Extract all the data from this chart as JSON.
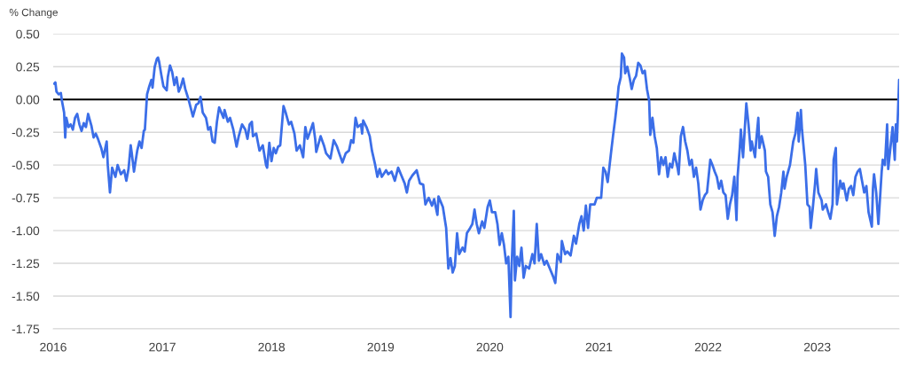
{
  "chart_data": {
    "type": "line",
    "ylabel": "% Change",
    "x": [
      2016.01,
      2016.02,
      2016.03,
      2016.05,
      2016.07,
      2016.08,
      2016.1,
      2016.11,
      2016.12,
      2016.14,
      2016.16,
      2016.18,
      2016.2,
      2016.22,
      2016.24,
      2016.26,
      2016.28,
      2016.3,
      2016.32,
      2016.35,
      2016.37,
      2016.39,
      2016.41,
      2016.44,
      2016.46,
      2016.49,
      2016.5,
      2016.52,
      2016.54,
      2016.57,
      2016.59,
      2016.62,
      2016.65,
      2016.67,
      2016.69,
      2016.71,
      2016.72,
      2016.74,
      2016.77,
      2016.79,
      2016.81,
      2016.83,
      2016.84,
      2016.86,
      2016.88,
      2016.9,
      2016.91,
      2016.93,
      2016.95,
      2016.96,
      2016.97,
      2016.99,
      2017.01,
      2017.04,
      2017.05,
      2017.07,
      2017.09,
      2017.11,
      2017.13,
      2017.15,
      2017.17,
      2017.19,
      2017.21,
      2017.24,
      2017.28,
      2017.31,
      2017.33,
      2017.35,
      2017.37,
      2017.4,
      2017.42,
      2017.44,
      2017.46,
      2017.48,
      2017.5,
      2017.52,
      2017.54,
      2017.56,
      2017.57,
      2017.6,
      2017.62,
      2017.65,
      2017.68,
      2017.7,
      2017.73,
      2017.76,
      2017.78,
      2017.8,
      2017.82,
      2017.83,
      2017.86,
      2017.89,
      2017.92,
      2017.95,
      2017.96,
      2017.98,
      2018.0,
      2018.02,
      2018.04,
      2018.06,
      2018.08,
      2018.11,
      2018.13,
      2018.16,
      2018.18,
      2018.21,
      2018.23,
      2018.26,
      2018.29,
      2018.31,
      2018.33,
      2018.36,
      2018.38,
      2018.4,
      2018.41,
      2018.45,
      2018.48,
      2018.5,
      2018.54,
      2018.57,
      2018.6,
      2018.62,
      2018.65,
      2018.68,
      2018.71,
      2018.73,
      2018.75,
      2018.77,
      2018.79,
      2018.82,
      2018.83,
      2018.84,
      2018.87,
      2018.9,
      2018.92,
      2018.95,
      2018.97,
      2018.99,
      2019.01,
      2019.05,
      2019.07,
      2019.1,
      2019.13,
      2019.16,
      2019.19,
      2019.22,
      2019.24,
      2019.26,
      2019.29,
      2019.33,
      2019.36,
      2019.39,
      2019.41,
      2019.44,
      2019.47,
      2019.49,
      2019.52,
      2019.53,
      2019.57,
      2019.6,
      2019.62,
      2019.64,
      2019.66,
      2019.68,
      2019.7,
      2019.72,
      2019.75,
      2019.77,
      2019.79,
      2019.82,
      2019.84,
      2019.86,
      2019.88,
      2019.9,
      2019.93,
      2019.95,
      2019.98,
      2020.0,
      2020.02,
      2020.05,
      2020.07,
      2020.09,
      2020.11,
      2020.13,
      2020.15,
      2020.17,
      2020.19,
      2020.2,
      2020.22,
      2020.23,
      2020.25,
      2020.27,
      2020.29,
      2020.31,
      2020.33,
      2020.36,
      2020.39,
      2020.41,
      2020.43,
      2020.45,
      2020.47,
      2020.5,
      2020.52,
      2020.55,
      2020.58,
      2020.6,
      2020.62,
      2020.65,
      2020.66,
      2020.69,
      2020.71,
      2020.74,
      2020.77,
      2020.79,
      2020.82,
      2020.84,
      2020.86,
      2020.88,
      2020.9,
      2020.92,
      2020.96,
      2020.98,
      2021.02,
      2021.04,
      2021.06,
      2021.08,
      2021.11,
      2021.13,
      2021.15,
      2021.17,
      2021.18,
      2021.2,
      2021.21,
      2021.23,
      2021.24,
      2021.26,
      2021.28,
      2021.3,
      2021.32,
      2021.34,
      2021.36,
      2021.38,
      2021.4,
      2021.42,
      2021.44,
      2021.46,
      2021.47,
      2021.49,
      2021.51,
      2021.53,
      2021.55,
      2021.57,
      2021.59,
      2021.61,
      2021.63,
      2021.65,
      2021.67,
      2021.69,
      2021.72,
      2021.73,
      2021.75,
      2021.77,
      2021.79,
      2021.81,
      2021.83,
      2021.85,
      2021.87,
      2021.89,
      2021.91,
      2021.93,
      2021.95,
      2021.97,
      2021.99,
      2022.02,
      2022.04,
      2022.06,
      2022.08,
      2022.1,
      2022.12,
      2022.14,
      2022.16,
      2022.18,
      2022.2,
      2022.22,
      2022.24,
      2022.26,
      2022.27,
      2022.29,
      2022.3,
      2022.32,
      2022.35,
      2022.37,
      2022.39,
      2022.4,
      2022.43,
      2022.44,
      2022.46,
      2022.47,
      2022.49,
      2022.52,
      2022.53,
      2022.55,
      2022.57,
      2022.59,
      2022.61,
      2022.63,
      2022.65,
      2022.67,
      2022.69,
      2022.7,
      2022.72,
      2022.75,
      2022.76,
      2022.78,
      2022.8,
      2022.82,
      2022.83,
      2022.85,
      2022.86,
      2022.89,
      2022.91,
      2022.93,
      2022.94,
      2022.96,
      2022.98,
      2022.99,
      2023.01,
      2023.04,
      2023.05,
      2023.08,
      2023.1,
      2023.12,
      2023.14,
      2023.15,
      2023.17,
      2023.18,
      2023.21,
      2023.23,
      2023.24,
      2023.27,
      2023.29,
      2023.31,
      2023.33,
      2023.35,
      2023.37,
      2023.39,
      2023.41,
      2023.43,
      2023.45,
      2023.47,
      2023.5,
      2023.51,
      2023.52,
      2023.54,
      2023.56,
      2023.57,
      2023.59,
      2023.6,
      2023.62,
      2023.64,
      2023.65,
      2023.67,
      2023.69,
      2023.71,
      2023.72,
      2023.73,
      2023.75
    ],
    "series": [
      {
        "color": "#3b6ee8",
        "values": [
          0.12,
          0.13,
          0.06,
          0.04,
          0.05,
          -0.01,
          -0.1,
          -0.29,
          -0.14,
          -0.21,
          -0.19,
          -0.23,
          -0.14,
          -0.11,
          -0.19,
          -0.24,
          -0.18,
          -0.21,
          -0.11,
          -0.2,
          -0.29,
          -0.26,
          -0.3,
          -0.37,
          -0.44,
          -0.32,
          -0.5,
          -0.71,
          -0.52,
          -0.59,
          -0.5,
          -0.57,
          -0.54,
          -0.62,
          -0.53,
          -0.35,
          -0.41,
          -0.55,
          -0.39,
          -0.32,
          -0.37,
          -0.24,
          -0.23,
          0.04,
          0.1,
          0.15,
          0.09,
          0.25,
          0.31,
          0.32,
          0.29,
          0.19,
          0.1,
          0.07,
          0.17,
          0.26,
          0.21,
          0.11,
          0.17,
          0.06,
          0.1,
          0.16,
          0.08,
          0.0,
          -0.13,
          -0.04,
          -0.03,
          0.02,
          -0.1,
          -0.14,
          -0.23,
          -0.21,
          -0.32,
          -0.33,
          -0.17,
          -0.06,
          -0.1,
          -0.14,
          -0.08,
          -0.17,
          -0.14,
          -0.23,
          -0.36,
          -0.28,
          -0.19,
          -0.23,
          -0.3,
          -0.19,
          -0.17,
          -0.28,
          -0.26,
          -0.39,
          -0.35,
          -0.5,
          -0.52,
          -0.33,
          -0.47,
          -0.37,
          -0.41,
          -0.36,
          -0.35,
          -0.05,
          -0.1,
          -0.19,
          -0.17,
          -0.26,
          -0.39,
          -0.35,
          -0.44,
          -0.21,
          -0.3,
          -0.23,
          -0.18,
          -0.3,
          -0.4,
          -0.28,
          -0.35,
          -0.41,
          -0.45,
          -0.31,
          -0.36,
          -0.41,
          -0.48,
          -0.41,
          -0.39,
          -0.31,
          -0.33,
          -0.14,
          -0.21,
          -0.19,
          -0.26,
          -0.16,
          -0.21,
          -0.28,
          -0.39,
          -0.5,
          -0.59,
          -0.53,
          -0.59,
          -0.54,
          -0.57,
          -0.55,
          -0.62,
          -0.52,
          -0.58,
          -0.64,
          -0.71,
          -0.62,
          -0.58,
          -0.54,
          -0.64,
          -0.65,
          -0.8,
          -0.75,
          -0.81,
          -0.76,
          -0.88,
          -0.74,
          -0.82,
          -0.98,
          -1.29,
          -1.21,
          -1.32,
          -1.27,
          -1.02,
          -1.18,
          -1.13,
          -1.16,
          -1.02,
          -0.98,
          -0.95,
          -0.84,
          -0.95,
          -1.02,
          -0.93,
          -0.98,
          -0.82,
          -0.77,
          -0.86,
          -0.86,
          -0.95,
          -1.11,
          -1.02,
          -1.11,
          -1.25,
          -1.2,
          -1.66,
          -1.27,
          -0.85,
          -1.38,
          -1.2,
          -1.27,
          -1.13,
          -1.36,
          -1.27,
          -1.29,
          -1.18,
          -1.25,
          -0.95,
          -1.23,
          -1.18,
          -1.26,
          -1.23,
          -1.29,
          -1.35,
          -1.4,
          -1.18,
          -1.24,
          -1.08,
          -1.18,
          -1.16,
          -1.19,
          -1.04,
          -1.1,
          -0.95,
          -0.89,
          -1.0,
          -0.81,
          -0.98,
          -0.8,
          -0.8,
          -0.75,
          -0.75,
          -0.52,
          -0.55,
          -0.63,
          -0.41,
          -0.27,
          -0.14,
          0.01,
          0.1,
          0.17,
          0.35,
          0.32,
          0.2,
          0.25,
          0.17,
          0.08,
          0.15,
          0.18,
          0.28,
          0.26,
          0.2,
          0.22,
          0.08,
          -0.01,
          -0.27,
          -0.14,
          -0.28,
          -0.37,
          -0.57,
          -0.44,
          -0.5,
          -0.44,
          -0.59,
          -0.49,
          -0.52,
          -0.41,
          -0.52,
          -0.57,
          -0.28,
          -0.21,
          -0.32,
          -0.39,
          -0.5,
          -0.46,
          -0.59,
          -0.52,
          -0.64,
          -0.84,
          -0.77,
          -0.73,
          -0.71,
          -0.46,
          -0.5,
          -0.55,
          -0.59,
          -0.68,
          -0.62,
          -0.71,
          -0.73,
          -0.91,
          -0.8,
          -0.73,
          -0.59,
          -0.92,
          -0.59,
          -0.37,
          -0.23,
          -0.44,
          -0.03,
          -0.19,
          -0.39,
          -0.32,
          -0.44,
          -0.32,
          -0.14,
          -0.37,
          -0.28,
          -0.39,
          -0.55,
          -0.59,
          -0.8,
          -0.86,
          -1.04,
          -0.89,
          -0.82,
          -0.71,
          -0.55,
          -0.68,
          -0.59,
          -0.5,
          -0.44,
          -0.32,
          -0.26,
          -0.1,
          -0.32,
          -0.08,
          -0.23,
          -0.5,
          -0.8,
          -0.82,
          -0.98,
          -0.82,
          -0.64,
          -0.53,
          -0.71,
          -0.77,
          -0.84,
          -0.8,
          -0.86,
          -0.91,
          -0.8,
          -0.46,
          -0.37,
          -0.8,
          -0.62,
          -0.68,
          -0.64,
          -0.77,
          -0.68,
          -0.66,
          -0.73,
          -0.59,
          -0.55,
          -0.53,
          -0.62,
          -0.71,
          -0.66,
          -0.86,
          -0.97,
          -0.68,
          -0.57,
          -0.71,
          -0.95,
          -0.82,
          -0.55,
          -0.46,
          -0.5,
          -0.19,
          -0.53,
          -0.37,
          -0.21,
          -0.46,
          -0.19,
          -0.32,
          0.15
        ]
      }
    ],
    "xlim": [
      2016,
      2023.75
    ],
    "xticks": [
      2016,
      2017,
      2018,
      2019,
      2020,
      2021,
      2022,
      2023
    ],
    "ylim": [
      -1.75,
      0.5
    ],
    "yticks": [
      {
        "value": 0.5,
        "label": "0.50"
      },
      {
        "value": 0.25,
        "label": "0.25"
      },
      {
        "value": 0,
        "label": "0.00"
      },
      {
        "value": -0.25,
        "label": "-0.25"
      },
      {
        "value": -0.5,
        "label": "-0.50"
      },
      {
        "value": -0.75,
        "label": "-0.75"
      },
      {
        "value": -1,
        "label": "-1.00"
      },
      {
        "value": -1.25,
        "label": "-1.25"
      },
      {
        "value": -1.5,
        "label": "-1.50"
      },
      {
        "value": -1.75,
        "label": "-1.75"
      }
    ],
    "grid": "y",
    "line_style": "solid",
    "ref_lines": [
      {
        "axis": "y",
        "value": 0,
        "color": "#000000"
      }
    ]
  }
}
